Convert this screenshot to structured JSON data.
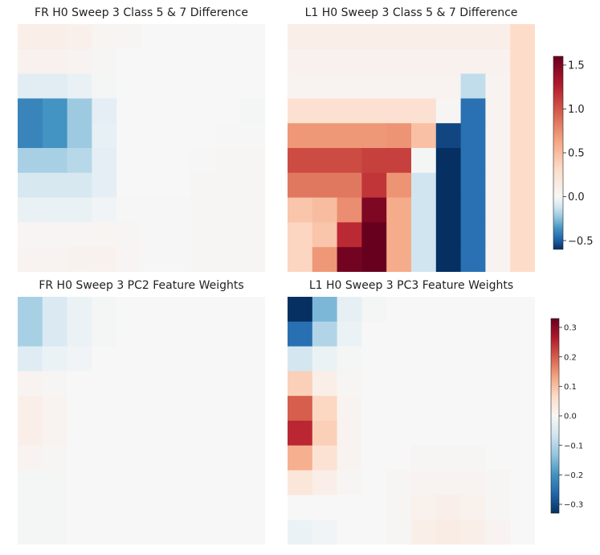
{
  "chart_data": [
    {
      "type": "heatmap",
      "title": "FR H0 Sweep 3 Class 5 & 7 Difference",
      "grid_on": false,
      "colormap": "RdBu_r",
      "vmin": -0.6,
      "vmax": 1.6,
      "vcenter": 0.0,
      "colorbar_ref": "cbar_top",
      "values": [
        [
          0.1,
          0.1,
          0.08,
          0.04,
          0.02,
          0,
          0,
          0,
          0,
          0
        ],
        [
          0.07,
          0.07,
          0.05,
          0.02,
          0,
          0,
          0,
          0,
          0,
          0
        ],
        [
          -0.07,
          -0.07,
          -0.04,
          -0.01,
          0,
          0,
          0,
          0,
          0,
          0
        ],
        [
          -0.4,
          -0.36,
          -0.22,
          -0.06,
          0,
          0,
          0,
          0,
          0,
          -0.01
        ],
        [
          -0.4,
          -0.36,
          -0.22,
          -0.05,
          0,
          0,
          0,
          0,
          0.01,
          0.01
        ],
        [
          -0.2,
          -0.2,
          -0.17,
          -0.06,
          0,
          0,
          0,
          0.01,
          0.02,
          0.02
        ],
        [
          -0.1,
          -0.1,
          -0.1,
          -0.06,
          0,
          0,
          0,
          0.02,
          0.02,
          0.02
        ],
        [
          -0.04,
          -0.04,
          -0.04,
          -0.02,
          0.01,
          0.01,
          0.01,
          0.02,
          0.02,
          0.02
        ],
        [
          0.03,
          0.03,
          0.03,
          0.04,
          0.02,
          0.01,
          0.01,
          0.02,
          0.02,
          0.02
        ],
        [
          0.05,
          0.05,
          0.06,
          0.07,
          0.03,
          0.01,
          0.01,
          0.02,
          0.02,
          0.02
        ]
      ]
    },
    {
      "type": "heatmap",
      "title": "L1 H0 Sweep 3 Class 5 & 7 Difference",
      "grid_on": false,
      "colormap": "RdBu_r",
      "vmin": -0.6,
      "vmax": 1.6,
      "vcenter": 0.0,
      "colorbar_ref": "cbar_top",
      "values": [
        [
          0.1,
          0.1,
          0.1,
          0.1,
          0.1,
          0.1,
          0.1,
          0.1,
          0.1,
          0.3
        ],
        [
          0.07,
          0.07,
          0.07,
          0.07,
          0.07,
          0.07,
          0.07,
          0.07,
          0.07,
          0.3
        ],
        [
          0.05,
          0.05,
          0.05,
          0.05,
          0.05,
          0.05,
          0.05,
          -0.15,
          0.05,
          0.3
        ],
        [
          0.25,
          0.25,
          0.25,
          0.25,
          0.25,
          0.25,
          0.02,
          -0.45,
          0.05,
          0.3
        ],
        [
          0.7,
          0.7,
          0.7,
          0.7,
          0.72,
          0.48,
          -0.55,
          -0.45,
          0.05,
          0.3
        ],
        [
          1.05,
          1.05,
          1.05,
          1.1,
          1.1,
          -0.01,
          -0.63,
          -0.45,
          0.05,
          0.3
        ],
        [
          0.85,
          0.85,
          0.85,
          1.15,
          0.72,
          -0.12,
          -0.63,
          -0.45,
          0.05,
          0.3
        ],
        [
          0.45,
          0.5,
          0.75,
          1.5,
          0.6,
          -0.12,
          -0.63,
          -0.45,
          0.05,
          0.3
        ],
        [
          0.35,
          0.45,
          1.2,
          1.6,
          0.6,
          -0.12,
          -0.63,
          -0.45,
          0.05,
          0.3
        ],
        [
          0.35,
          0.7,
          1.55,
          1.6,
          0.6,
          -0.12,
          -0.63,
          -0.45,
          0.05,
          0.3
        ]
      ]
    },
    {
      "type": "heatmap",
      "title": "FR H0 Sweep 3 PC2 Feature Weights",
      "grid_on": false,
      "colormap": "RdBu_r",
      "vmin": -0.33,
      "vmax": 0.33,
      "vcenter": 0.0,
      "colorbar_ref": "cbar_bottom",
      "values": [
        [
          -0.11,
          -0.05,
          -0.02,
          -0.005,
          0,
          0,
          0,
          0,
          0,
          0
        ],
        [
          -0.11,
          -0.05,
          -0.02,
          -0.005,
          0,
          0,
          0,
          0,
          0,
          0
        ],
        [
          -0.04,
          -0.02,
          -0.01,
          0,
          0,
          0,
          0,
          0,
          0,
          0
        ],
        [
          0.01,
          0.005,
          0,
          0,
          0,
          0,
          0,
          0,
          0,
          0
        ],
        [
          0.02,
          0.01,
          0,
          0,
          0,
          0,
          0,
          0,
          0,
          0
        ],
        [
          0.02,
          0.01,
          0,
          0,
          0,
          0,
          0,
          0,
          0,
          0
        ],
        [
          0.01,
          0.005,
          0,
          0,
          0,
          0,
          0,
          0,
          0,
          0
        ],
        [
          -0.005,
          -0.005,
          0,
          0,
          0,
          0,
          0,
          0,
          0,
          0
        ],
        [
          -0.005,
          -0.005,
          0,
          0,
          0,
          0,
          0,
          0,
          0,
          0
        ],
        [
          -0.005,
          -0.005,
          0,
          0,
          0,
          0,
          0,
          0,
          0,
          0
        ]
      ]
    },
    {
      "type": "heatmap",
      "title": "L1 H0 Sweep 3 PC3 Feature Weights",
      "grid_on": false,
      "colormap": "RdBu_r",
      "vmin": -0.33,
      "vmax": 0.33,
      "vcenter": 0.0,
      "colorbar_ref": "cbar_bottom",
      "values": [
        [
          -0.33,
          -0.15,
          -0.03,
          -0.005,
          0,
          0,
          0,
          0,
          0,
          0
        ],
        [
          -0.25,
          -0.1,
          -0.02,
          0,
          0,
          0,
          0,
          0,
          0,
          0
        ],
        [
          -0.06,
          -0.02,
          -0.005,
          0,
          0,
          0,
          0,
          0,
          0,
          0
        ],
        [
          0.08,
          0.02,
          0.005,
          0,
          0,
          0,
          0,
          0,
          0,
          0
        ],
        [
          0.2,
          0.07,
          0.01,
          0,
          0,
          0,
          0,
          0,
          0,
          0
        ],
        [
          0.25,
          0.08,
          0.01,
          0,
          0,
          0,
          0,
          0,
          0,
          0
        ],
        [
          0.12,
          0.05,
          0.01,
          0,
          0,
          0.005,
          0.005,
          0.005,
          0,
          0
        ],
        [
          0.04,
          0.02,
          0.005,
          0,
          0.005,
          0.01,
          0.01,
          0.01,
          0.005,
          0
        ],
        [
          0,
          0,
          0,
          0,
          0.005,
          0.015,
          0.02,
          0.015,
          0.005,
          0
        ],
        [
          -0.02,
          -0.01,
          0,
          0,
          0.005,
          0.02,
          0.025,
          0.02,
          0.01,
          0
        ]
      ]
    }
  ],
  "colorbars": {
    "cbar_top": {
      "vmin": -0.6,
      "vmax": 1.6,
      "vcenter": 0.0,
      "ticks": [
        {
          "value": 1.5,
          "label": "1.5"
        },
        {
          "value": 1.0,
          "label": "1.0"
        },
        {
          "value": 0.5,
          "label": "0.5"
        },
        {
          "value": 0.0,
          "label": "0.0"
        },
        {
          "value": -0.5,
          "label": "−0.5"
        }
      ]
    },
    "cbar_bottom": {
      "vmin": -0.33,
      "vmax": 0.33,
      "vcenter": 0.0,
      "ticks": [
        {
          "value": 0.3,
          "label": "0.3"
        },
        {
          "value": 0.2,
          "label": "0.2"
        },
        {
          "value": 0.1,
          "label": "0.1"
        },
        {
          "value": 0.0,
          "label": "0.0"
        },
        {
          "value": -0.1,
          "label": "−0.1"
        },
        {
          "value": -0.2,
          "label": "−0.2"
        },
        {
          "value": -0.3,
          "label": "−0.3"
        }
      ]
    }
  }
}
